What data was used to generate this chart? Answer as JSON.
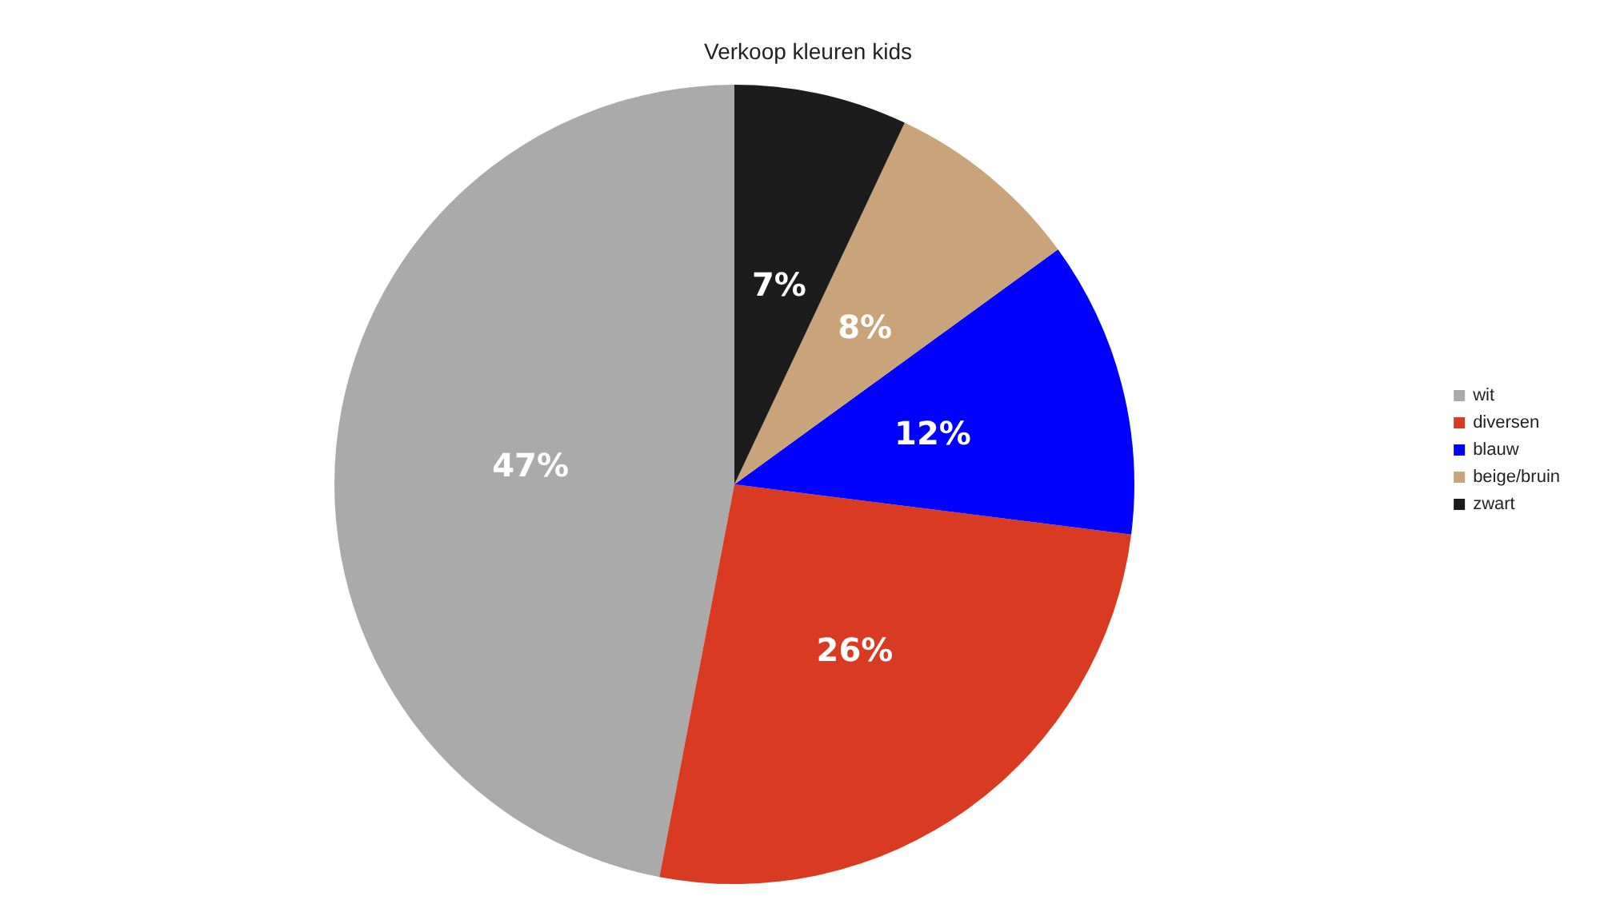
{
  "chart_data": {
    "type": "pie",
    "title": "Verkoop kleuren kids",
    "categories": [
      "wit",
      "diversen",
      "blauw",
      "beige/bruin",
      "zwart"
    ],
    "values": [
      47,
      26,
      12,
      8,
      7
    ],
    "value_labels": [
      "47%",
      "26%",
      "12%",
      "8%",
      "7%"
    ],
    "colors": [
      "#aaaaaa",
      "#d83b22",
      "#0000ff",
      "#c9a47a",
      "#1c1c1c"
    ],
    "legend": "right"
  }
}
